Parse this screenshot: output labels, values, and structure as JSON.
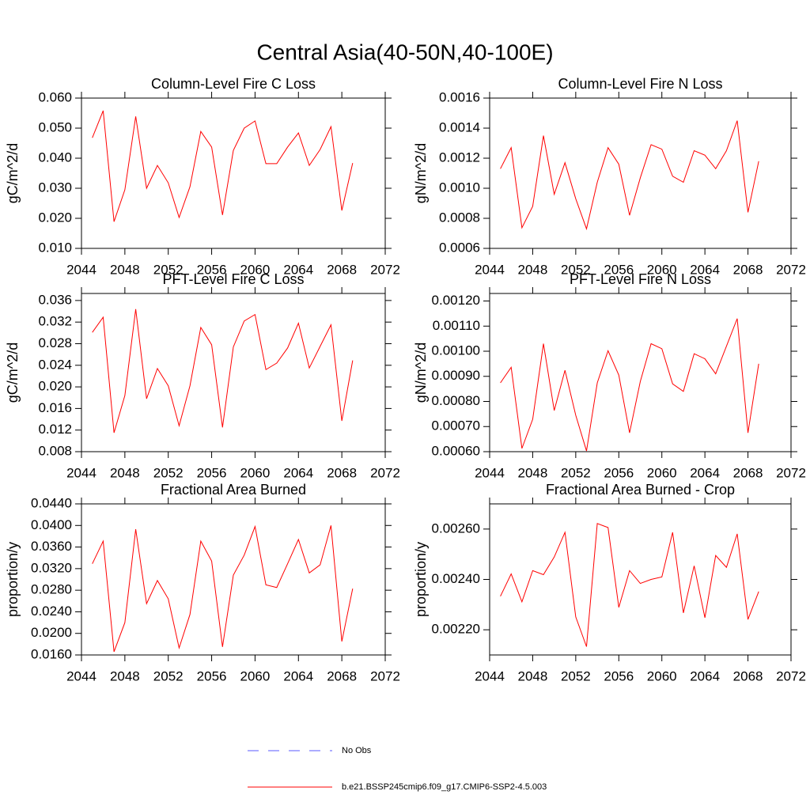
{
  "title": "Central Asia(40-50N,40-100E)",
  "legend": [
    {
      "name": "No Obs",
      "color": "#5a5aff",
      "dash": true
    },
    {
      "name": "b.e21.BSSP245cmip6.f09_g17.CMIP6-SSP2-4.5.003",
      "color": "#ff0000",
      "dash": false
    }
  ],
  "chart_data": [
    {
      "type": "line",
      "title": "Column-Level Fire C Loss",
      "y_label": "gC/m^2/d",
      "x": [
        2045,
        2046,
        2047,
        2048,
        2049,
        2050,
        2051,
        2052,
        2053,
        2054,
        2055,
        2056,
        2057,
        2058,
        2059,
        2060,
        2061,
        2062,
        2063,
        2064,
        2065,
        2066,
        2067,
        2068,
        2069
      ],
      "series": [
        {
          "color": "#ff0000",
          "values": [
            0.0468,
            0.0558,
            0.0189,
            0.0295,
            0.0539,
            0.03,
            0.0376,
            0.0318,
            0.0203,
            0.0305,
            0.0489,
            0.0437,
            0.0211,
            0.0426,
            0.05,
            0.0524,
            0.0382,
            0.0382,
            0.0437,
            0.0484,
            0.0376,
            0.0429,
            0.0505,
            0.0226,
            0.0384
          ]
        }
      ],
      "xlim": [
        2044,
        2072
      ],
      "xticks": [
        2044,
        2048,
        2052,
        2056,
        2060,
        2064,
        2068,
        2072
      ],
      "ylim": [
        0.01,
        0.06
      ],
      "yticks": [
        {
          "value": 0.01,
          "label": "0.010"
        },
        {
          "value": 0.02,
          "label": "0.020"
        },
        {
          "value": 0.03,
          "label": "0.030"
        },
        {
          "value": 0.04,
          "label": "0.040"
        },
        {
          "value": 0.05,
          "label": "0.050"
        },
        {
          "value": 0.06,
          "label": "0.060"
        }
      ]
    },
    {
      "type": "line",
      "title": "Column-Level Fire N Loss",
      "y_label": "gN/m^2/d",
      "x": [
        2045,
        2046,
        2047,
        2048,
        2049,
        2050,
        2051,
        2052,
        2053,
        2054,
        2055,
        2056,
        2057,
        2058,
        2059,
        2060,
        2061,
        2062,
        2063,
        2064,
        2065,
        2066,
        2067,
        2068,
        2069
      ],
      "series": [
        {
          "color": "#ff0000",
          "values": [
            0.00113,
            0.00127,
            0.000737,
            0.00088,
            0.00135,
            0.00096,
            0.00117,
            0.00093,
            0.00073,
            0.00104,
            0.00127,
            0.00116,
            0.00082,
            0.00107,
            0.00129,
            0.00126,
            0.00108,
            0.00104,
            0.00125,
            0.00122,
            0.00113,
            0.00125,
            0.00145,
            0.00084,
            0.00118
          ]
        }
      ],
      "xlim": [
        2044,
        2072
      ],
      "xticks": [
        2044,
        2048,
        2052,
        2056,
        2060,
        2064,
        2068,
        2072
      ],
      "ylim": [
        0.0006,
        0.0016
      ],
      "yticks": [
        0.0006,
        0.0008,
        {
          "value": 0.001,
          "label": "0.0010"
        },
        0.0012,
        0.0014,
        0.0016
      ]
    },
    {
      "type": "line",
      "title": "PFT-Level Fire C Loss",
      "y_label": "gC/m^2/d",
      "x": [
        2045,
        2046,
        2047,
        2048,
        2049,
        2050,
        2051,
        2052,
        2053,
        2054,
        2055,
        2056,
        2057,
        2058,
        2059,
        2060,
        2061,
        2062,
        2063,
        2064,
        2065,
        2066,
        2067,
        2068,
        2069
      ],
      "series": [
        {
          "color": "#ff0000",
          "values": [
            0.0301,
            0.0329,
            0.0115,
            0.0184,
            0.0344,
            0.0178,
            0.0234,
            0.0202,
            0.0128,
            0.0202,
            0.031,
            0.0278,
            0.0125,
            0.0274,
            0.0322,
            0.0334,
            0.0232,
            0.0244,
            0.0272,
            0.0318,
            0.0235,
            0.0275,
            0.0315,
            0.0137,
            0.0249
          ]
        }
      ],
      "xlim": [
        2044,
        2072
      ],
      "xticks": [
        2044,
        2048,
        2052,
        2056,
        2060,
        2064,
        2068,
        2072
      ],
      "ylim": [
        0.008,
        0.0373
      ],
      "yticks": [
        0.008,
        0.012,
        0.016,
        {
          "value": 0.02,
          "label": "0.020"
        },
        0.024,
        0.028,
        0.032,
        0.036
      ]
    },
    {
      "type": "line",
      "title": "PFT-Level Fire N Loss",
      "y_label": "gN/m^2/d",
      "x": [
        2045,
        2046,
        2047,
        2048,
        2049,
        2050,
        2051,
        2052,
        2053,
        2054,
        2055,
        2056,
        2057,
        2058,
        2059,
        2060,
        2061,
        2062,
        2063,
        2064,
        2065,
        2066,
        2067,
        2068,
        2069
      ],
      "series": [
        {
          "color": "#ff0000",
          "values": [
            0.000874,
            0.000936,
            0.000613,
            0.000729,
            0.00103,
            0.000764,
            0.000924,
            0.000745,
            0.000603,
            0.000874,
            0.001002,
            0.000905,
            0.000675,
            0.00088,
            0.00103,
            0.00101,
            0.00087,
            0.00084,
            0.00099,
            0.00097,
            0.00091,
            0.00102,
            0.00113,
            0.000675,
            0.00095
          ]
        }
      ],
      "xlim": [
        2044,
        2072
      ],
      "xticks": [
        2044,
        2048,
        2052,
        2056,
        2060,
        2064,
        2068,
        2072
      ],
      "ylim": [
        0.0006,
        0.00123
      ],
      "yticks": [
        {
          "value": 0.0006,
          "label": "0.00060"
        },
        {
          "value": 0.0007,
          "label": "0.00070"
        },
        {
          "value": 0.0008,
          "label": "0.00080"
        },
        {
          "value": 0.0009,
          "label": "0.00090"
        },
        {
          "value": 0.001,
          "label": "0.00100"
        },
        {
          "value": 0.0011,
          "label": "0.00110"
        },
        {
          "value": 0.0012,
          "label": "0.00120"
        }
      ]
    },
    {
      "type": "line",
      "title": "Fractional Area Burned",
      "y_label": "proportion/y",
      "x": [
        2045,
        2046,
        2047,
        2048,
        2049,
        2050,
        2051,
        2052,
        2053,
        2054,
        2055,
        2056,
        2057,
        2058,
        2059,
        2060,
        2061,
        2062,
        2063,
        2064,
        2065,
        2066,
        2067,
        2068,
        2069
      ],
      "series": [
        {
          "color": "#ff0000",
          "values": [
            0.0329,
            0.0371,
            0.0166,
            0.022,
            0.0393,
            0.0255,
            0.0298,
            0.0264,
            0.0173,
            0.0235,
            0.0371,
            0.0334,
            0.0175,
            0.0308,
            0.0345,
            0.0398,
            0.029,
            0.0285,
            0.0329,
            0.0374,
            0.0312,
            0.0327,
            0.04,
            0.0185,
            0.0283
          ]
        }
      ],
      "xlim": [
        2044,
        2072
      ],
      "xticks": [
        2044,
        2048,
        2052,
        2056,
        2060,
        2064,
        2068,
        2072
      ],
      "ylim": [
        0.016,
        0.044
      ],
      "yticks": [
        {
          "value": 0.016,
          "label": "0.0160"
        },
        {
          "value": 0.02,
          "label": "0.0200"
        },
        {
          "value": 0.024,
          "label": "0.0240"
        },
        {
          "value": 0.028,
          "label": "0.0280"
        },
        {
          "value": 0.032,
          "label": "0.0320"
        },
        {
          "value": 0.036,
          "label": "0.0360"
        },
        {
          "value": 0.04,
          "label": "0.0400"
        },
        {
          "value": 0.044,
          "label": "0.0440"
        }
      ]
    },
    {
      "type": "line",
      "title": "Fractional Area Burned - Crop",
      "y_label": "proportion/y",
      "x": [
        2045,
        2046,
        2047,
        2048,
        2049,
        2050,
        2051,
        2052,
        2053,
        2054,
        2055,
        2056,
        2057,
        2058,
        2059,
        2060,
        2061,
        2062,
        2063,
        2064,
        2065,
        2066,
        2067,
        2068,
        2069
      ],
      "series": [
        {
          "color": "#ff0000",
          "values": [
            0.002333,
            0.002422,
            0.002311,
            0.002435,
            0.002419,
            0.002489,
            0.002587,
            0.002251,
            0.002133,
            0.002622,
            0.002606,
            0.002289,
            0.002435,
            0.002384,
            0.0024,
            0.00241,
            0.002587,
            0.002267,
            0.002454,
            0.002248,
            0.002495,
            0.002448,
            0.002581,
            0.002241,
            0.002352
          ]
        }
      ],
      "xlim": [
        2044,
        2072
      ],
      "xticks": [
        2044,
        2048,
        2052,
        2056,
        2060,
        2064,
        2068,
        2072
      ],
      "ylim": [
        0.0021,
        0.0027
      ],
      "yticks": [
        {
          "value": 0.0022,
          "label": "0.00220"
        },
        {
          "value": 0.0024,
          "label": "0.00240"
        },
        {
          "value": 0.0026,
          "label": "0.00260"
        }
      ]
    }
  ]
}
